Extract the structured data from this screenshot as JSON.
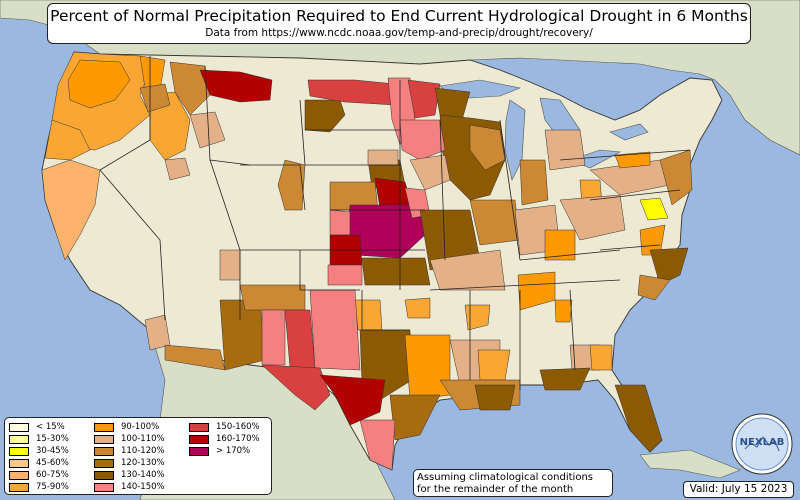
{
  "title": "Percent of Normal Precipitation Required to End Current Hydrological Drought in 6 Months",
  "subtitle": "Data from https://www.ncdc.noaa.gov/temp-and-precip/drought/recovery/",
  "legend": [
    {
      "label": "< 15%",
      "color": "#ffffe0"
    },
    {
      "label": "15-30%",
      "color": "#ffff99"
    },
    {
      "label": "30-45%",
      "color": "#ffff00"
    },
    {
      "label": "45-60%",
      "color": "#f9c98b"
    },
    {
      "label": "60-75%",
      "color": "#fdb36b"
    },
    {
      "label": "75-90%",
      "color": "#f9a634"
    },
    {
      "label": "90-100%",
      "color": "#ff9900"
    },
    {
      "label": "100-110%",
      "color": "#e4b088"
    },
    {
      "label": "110-120%",
      "color": "#cc8833"
    },
    {
      "label": "120-130%",
      "color": "#a86c10"
    },
    {
      "label": "130-140%",
      "color": "#8c5a00"
    },
    {
      "label": "140-150%",
      "color": "#f58080"
    },
    {
      "label": "150-160%",
      "color": "#d94040"
    },
    {
      "label": "160-170%",
      "color": "#b00000"
    },
    {
      "label": "> 170%",
      "color": "#b0005a"
    }
  ],
  "note": {
    "line1": "Assuming climatological conditions",
    "line2": "for the remainder of the month"
  },
  "valid": "Valid: July 15 2023",
  "logo_text": "NEXLAB",
  "colors": {
    "ocean": "#9ab8e0",
    "land": "#eee9d2",
    "canada": "#d9dfc6"
  }
}
